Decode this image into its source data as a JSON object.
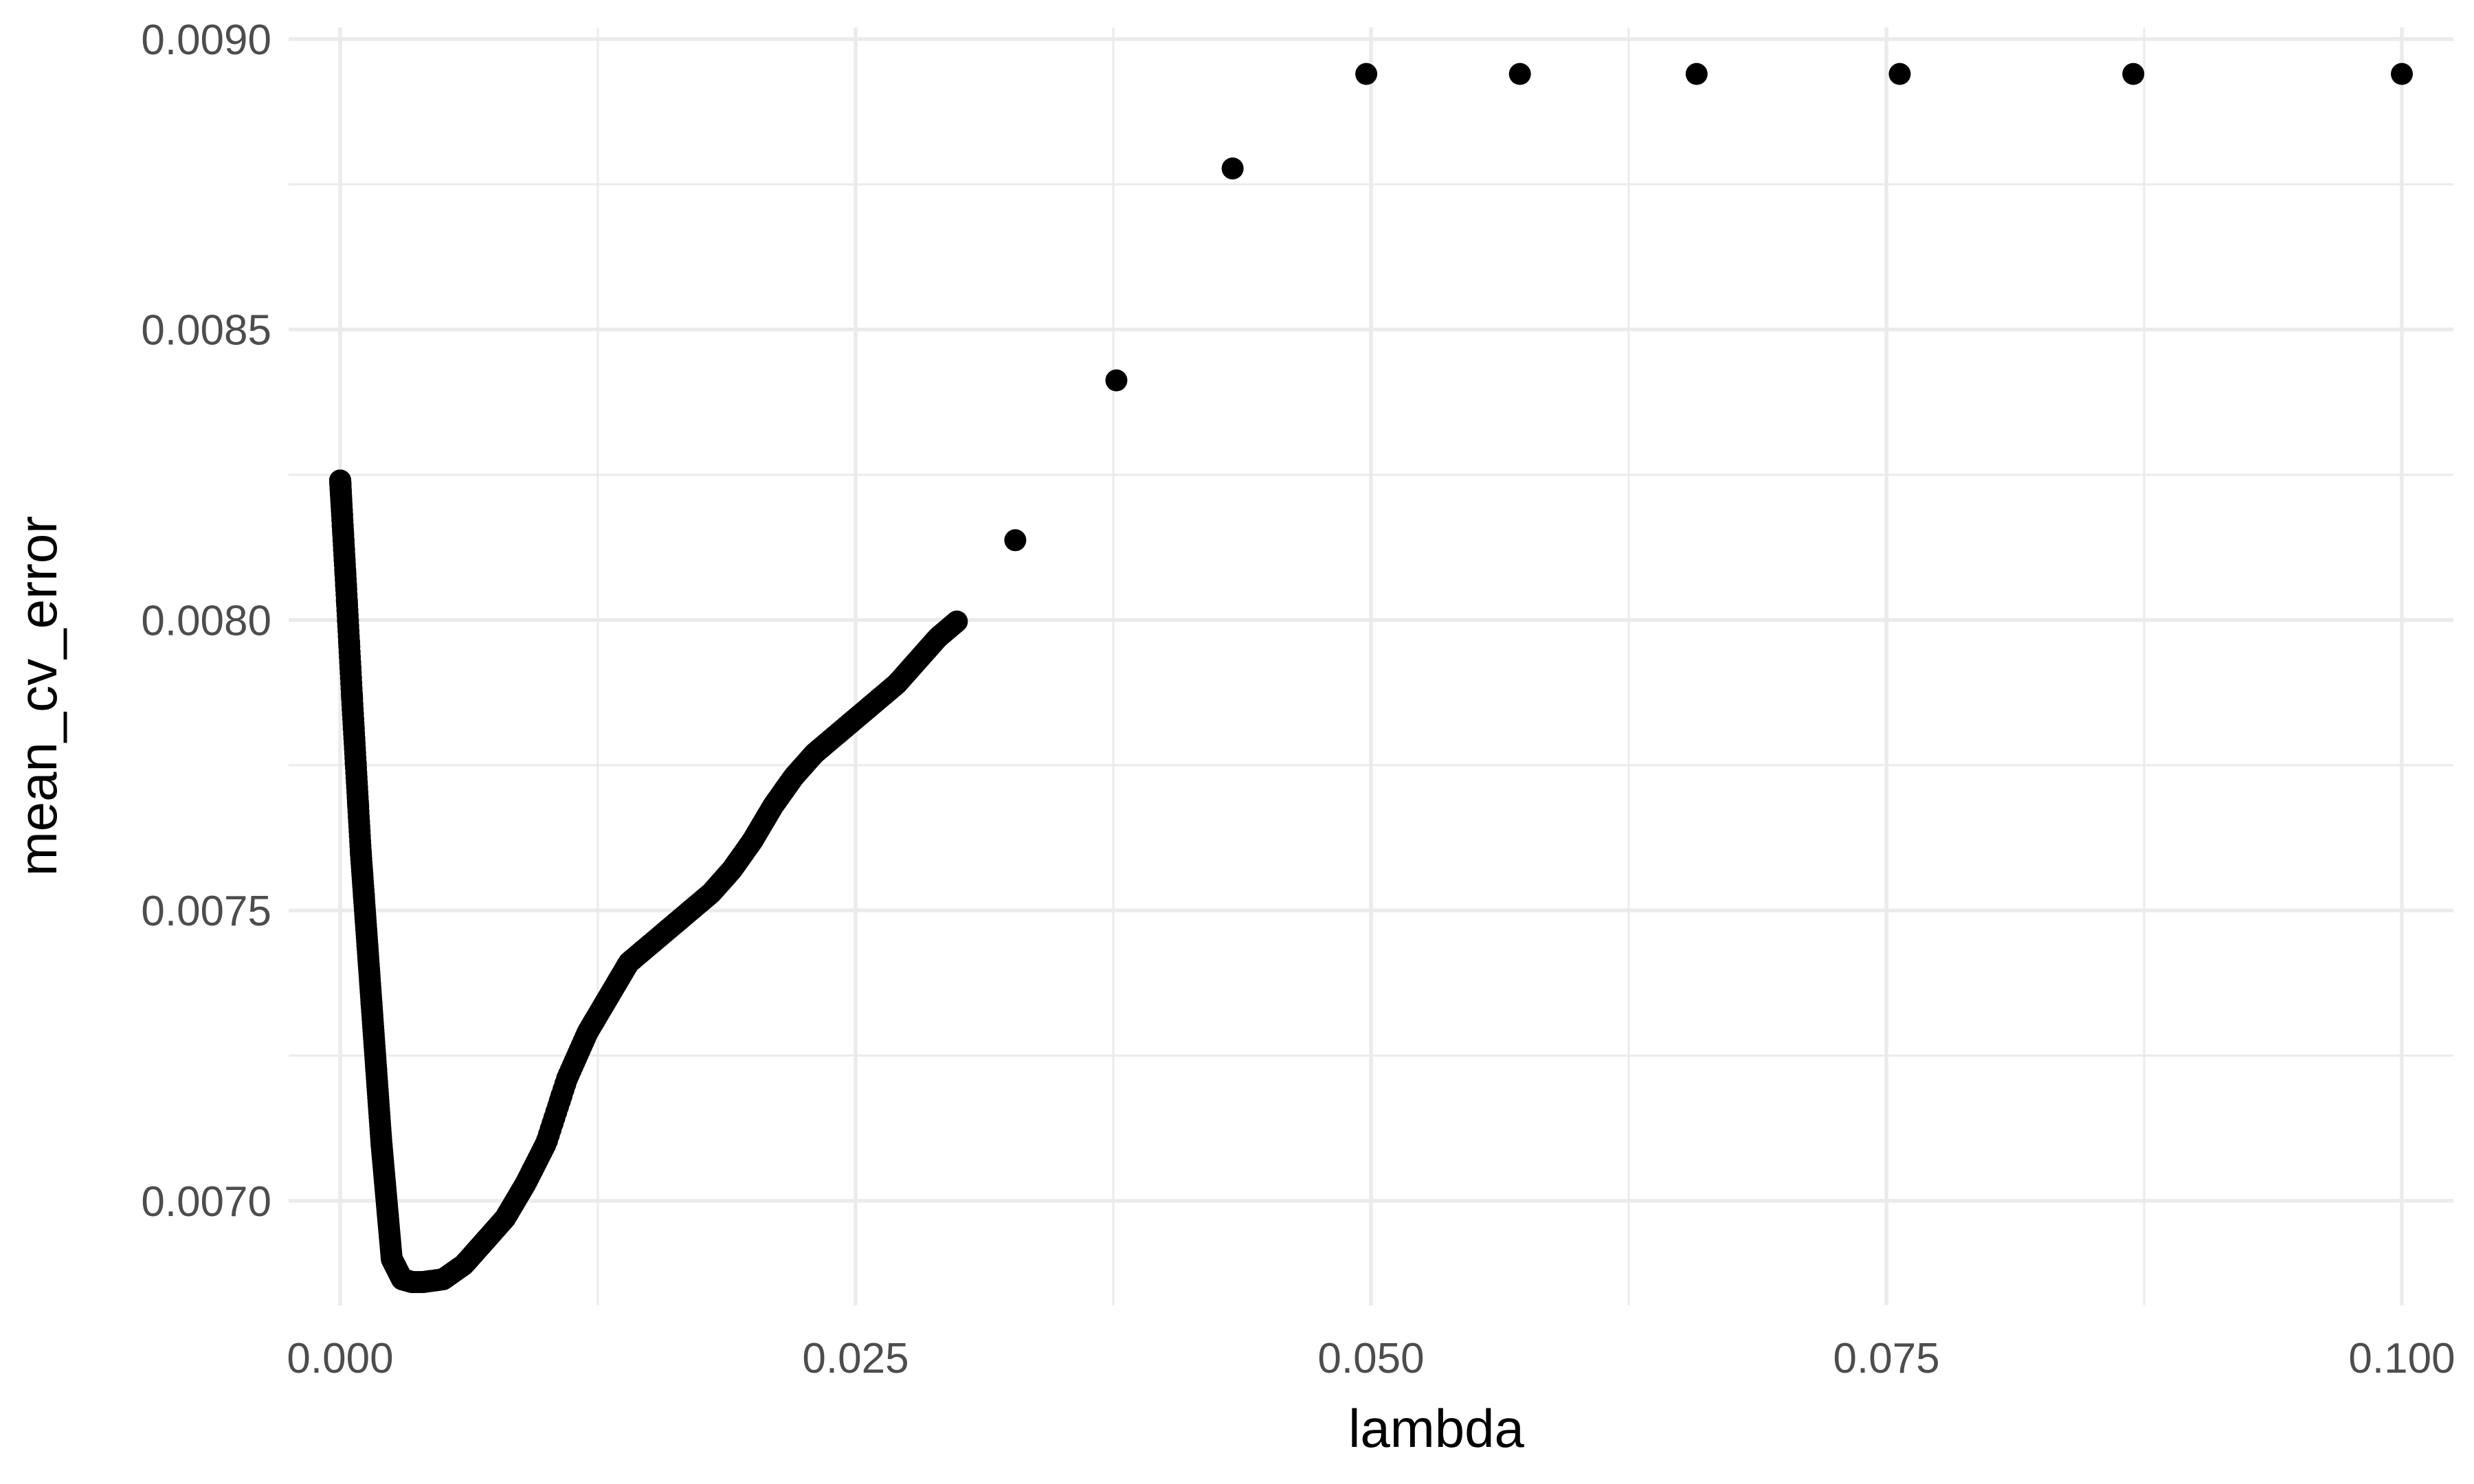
{
  "chart_data": {
    "type": "scatter",
    "title": "",
    "xlabel": "lambda",
    "ylabel": "mean_cv_error",
    "xlim": [
      -0.0025,
      0.1025
    ],
    "ylim": [
      0.00682,
      0.00902
    ],
    "x_ticks": [
      0.0,
      0.025,
      0.05,
      0.075,
      0.1
    ],
    "x_tick_labels": [
      "0.000",
      "0.025",
      "0.050",
      "0.075",
      "0.100"
    ],
    "y_ticks": [
      0.007,
      0.0075,
      0.008,
      0.0085,
      0.009
    ],
    "y_tick_labels": [
      "0.0070",
      "0.0075",
      "0.0080",
      "0.0085",
      "0.0090"
    ],
    "grid": true,
    "legend": "none",
    "color": "#000000",
    "curve_anchors": {
      "x": [
        0.0,
        0.0003,
        0.0006,
        0.001,
        0.0015,
        0.002,
        0.0025,
        0.003,
        0.0035,
        0.004,
        0.005,
        0.006,
        0.007,
        0.008,
        0.009,
        0.01,
        0.011,
        0.012,
        0.013,
        0.014,
        0.015,
        0.016,
        0.017,
        0.018,
        0.019,
        0.02,
        0.021,
        0.022,
        0.023,
        0.024,
        0.025,
        0.026,
        0.027,
        0.028,
        0.029,
        0.03,
        0.031,
        0.032,
        0.033,
        0.034,
        0.035,
        0.036,
        0.037,
        0.038,
        0.039,
        0.04,
        0.041,
        0.042,
        0.043,
        0.044,
        0.045,
        0.046,
        0.047,
        0.048,
        0.049,
        0.05,
        0.055,
        0.06,
        0.065,
        0.07,
        0.075,
        0.08,
        0.085,
        0.09,
        0.095,
        0.1
      ],
      "y": [
        0.00824,
        0.00805,
        0.00785,
        0.0076,
        0.00735,
        0.0071,
        0.0069,
        0.006865,
        0.00686,
        0.00686,
        0.006865,
        0.00689,
        0.00693,
        0.00697,
        0.00703,
        0.0071,
        0.00721,
        0.00729,
        0.00735,
        0.00741,
        0.00744,
        0.00747,
        0.0075,
        0.00753,
        0.00757,
        0.00762,
        0.00768,
        0.00773,
        0.00777,
        0.0078,
        0.00783,
        0.00786,
        0.00789,
        0.00793,
        0.00797,
        0.008,
        0.00805,
        0.0081,
        0.00815,
        0.0082,
        0.00826,
        0.00832,
        0.00838,
        0.00843,
        0.00849,
        0.00855,
        0.00862,
        0.00869,
        0.00876,
        0.00882,
        0.00887,
        0.0089,
        0.00892,
        0.00893,
        0.00894,
        0.00894,
        0.00894,
        0.00894,
        0.00894,
        0.00894,
        0.00894,
        0.00894,
        0.00894,
        0.00894,
        0.00894,
        0.00894
      ]
    }
  }
}
